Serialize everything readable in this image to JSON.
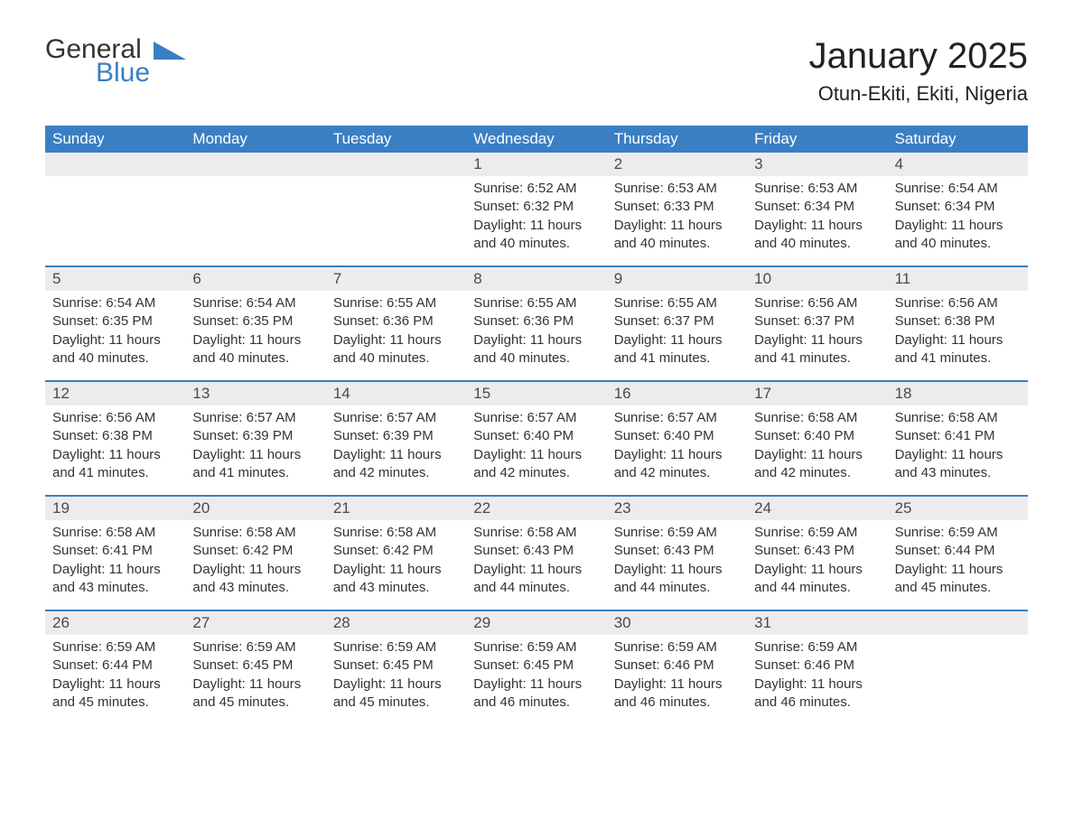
{
  "logo": {
    "text1": "General",
    "text2": "Blue",
    "text1_color": "#333333",
    "text2_color": "#3a7fc4",
    "shape_color": "#3a7fc4"
  },
  "title": "January 2025",
  "location": "Otun-Ekiti, Ekiti, Nigeria",
  "colors": {
    "header_bg": "#3a7fc4",
    "header_text": "#ffffff",
    "daynum_bg": "#ececec",
    "daynum_text": "#4a4a4a",
    "body_text": "#333333",
    "row_border": "#3a7fc4",
    "page_bg": "#ffffff"
  },
  "typography": {
    "title_fontsize": 40,
    "location_fontsize": 22,
    "dayheader_fontsize": 17,
    "daynum_fontsize": 17,
    "content_fontsize": 15,
    "font_family": "Arial"
  },
  "day_headers": [
    "Sunday",
    "Monday",
    "Tuesday",
    "Wednesday",
    "Thursday",
    "Friday",
    "Saturday"
  ],
  "weeks": [
    [
      {
        "empty": true
      },
      {
        "empty": true
      },
      {
        "empty": true
      },
      {
        "day": "1",
        "sunrise": "Sunrise: 6:52 AM",
        "sunset": "Sunset: 6:32 PM",
        "daylight": "Daylight: 11 hours and 40 minutes."
      },
      {
        "day": "2",
        "sunrise": "Sunrise: 6:53 AM",
        "sunset": "Sunset: 6:33 PM",
        "daylight": "Daylight: 11 hours and 40 minutes."
      },
      {
        "day": "3",
        "sunrise": "Sunrise: 6:53 AM",
        "sunset": "Sunset: 6:34 PM",
        "daylight": "Daylight: 11 hours and 40 minutes."
      },
      {
        "day": "4",
        "sunrise": "Sunrise: 6:54 AM",
        "sunset": "Sunset: 6:34 PM",
        "daylight": "Daylight: 11 hours and 40 minutes."
      }
    ],
    [
      {
        "day": "5",
        "sunrise": "Sunrise: 6:54 AM",
        "sunset": "Sunset: 6:35 PM",
        "daylight": "Daylight: 11 hours and 40 minutes."
      },
      {
        "day": "6",
        "sunrise": "Sunrise: 6:54 AM",
        "sunset": "Sunset: 6:35 PM",
        "daylight": "Daylight: 11 hours and 40 minutes."
      },
      {
        "day": "7",
        "sunrise": "Sunrise: 6:55 AM",
        "sunset": "Sunset: 6:36 PM",
        "daylight": "Daylight: 11 hours and 40 minutes."
      },
      {
        "day": "8",
        "sunrise": "Sunrise: 6:55 AM",
        "sunset": "Sunset: 6:36 PM",
        "daylight": "Daylight: 11 hours and 40 minutes."
      },
      {
        "day": "9",
        "sunrise": "Sunrise: 6:55 AM",
        "sunset": "Sunset: 6:37 PM",
        "daylight": "Daylight: 11 hours and 41 minutes."
      },
      {
        "day": "10",
        "sunrise": "Sunrise: 6:56 AM",
        "sunset": "Sunset: 6:37 PM",
        "daylight": "Daylight: 11 hours and 41 minutes."
      },
      {
        "day": "11",
        "sunrise": "Sunrise: 6:56 AM",
        "sunset": "Sunset: 6:38 PM",
        "daylight": "Daylight: 11 hours and 41 minutes."
      }
    ],
    [
      {
        "day": "12",
        "sunrise": "Sunrise: 6:56 AM",
        "sunset": "Sunset: 6:38 PM",
        "daylight": "Daylight: 11 hours and 41 minutes."
      },
      {
        "day": "13",
        "sunrise": "Sunrise: 6:57 AM",
        "sunset": "Sunset: 6:39 PM",
        "daylight": "Daylight: 11 hours and 41 minutes."
      },
      {
        "day": "14",
        "sunrise": "Sunrise: 6:57 AM",
        "sunset": "Sunset: 6:39 PM",
        "daylight": "Daylight: 11 hours and 42 minutes."
      },
      {
        "day": "15",
        "sunrise": "Sunrise: 6:57 AM",
        "sunset": "Sunset: 6:40 PM",
        "daylight": "Daylight: 11 hours and 42 minutes."
      },
      {
        "day": "16",
        "sunrise": "Sunrise: 6:57 AM",
        "sunset": "Sunset: 6:40 PM",
        "daylight": "Daylight: 11 hours and 42 minutes."
      },
      {
        "day": "17",
        "sunrise": "Sunrise: 6:58 AM",
        "sunset": "Sunset: 6:40 PM",
        "daylight": "Daylight: 11 hours and 42 minutes."
      },
      {
        "day": "18",
        "sunrise": "Sunrise: 6:58 AM",
        "sunset": "Sunset: 6:41 PM",
        "daylight": "Daylight: 11 hours and 43 minutes."
      }
    ],
    [
      {
        "day": "19",
        "sunrise": "Sunrise: 6:58 AM",
        "sunset": "Sunset: 6:41 PM",
        "daylight": "Daylight: 11 hours and 43 minutes."
      },
      {
        "day": "20",
        "sunrise": "Sunrise: 6:58 AM",
        "sunset": "Sunset: 6:42 PM",
        "daylight": "Daylight: 11 hours and 43 minutes."
      },
      {
        "day": "21",
        "sunrise": "Sunrise: 6:58 AM",
        "sunset": "Sunset: 6:42 PM",
        "daylight": "Daylight: 11 hours and 43 minutes."
      },
      {
        "day": "22",
        "sunrise": "Sunrise: 6:58 AM",
        "sunset": "Sunset: 6:43 PM",
        "daylight": "Daylight: 11 hours and 44 minutes."
      },
      {
        "day": "23",
        "sunrise": "Sunrise: 6:59 AM",
        "sunset": "Sunset: 6:43 PM",
        "daylight": "Daylight: 11 hours and 44 minutes."
      },
      {
        "day": "24",
        "sunrise": "Sunrise: 6:59 AM",
        "sunset": "Sunset: 6:43 PM",
        "daylight": "Daylight: 11 hours and 44 minutes."
      },
      {
        "day": "25",
        "sunrise": "Sunrise: 6:59 AM",
        "sunset": "Sunset: 6:44 PM",
        "daylight": "Daylight: 11 hours and 45 minutes."
      }
    ],
    [
      {
        "day": "26",
        "sunrise": "Sunrise: 6:59 AM",
        "sunset": "Sunset: 6:44 PM",
        "daylight": "Daylight: 11 hours and 45 minutes."
      },
      {
        "day": "27",
        "sunrise": "Sunrise: 6:59 AM",
        "sunset": "Sunset: 6:45 PM",
        "daylight": "Daylight: 11 hours and 45 minutes."
      },
      {
        "day": "28",
        "sunrise": "Sunrise: 6:59 AM",
        "sunset": "Sunset: 6:45 PM",
        "daylight": "Daylight: 11 hours and 45 minutes."
      },
      {
        "day": "29",
        "sunrise": "Sunrise: 6:59 AM",
        "sunset": "Sunset: 6:45 PM",
        "daylight": "Daylight: 11 hours and 46 minutes."
      },
      {
        "day": "30",
        "sunrise": "Sunrise: 6:59 AM",
        "sunset": "Sunset: 6:46 PM",
        "daylight": "Daylight: 11 hours and 46 minutes."
      },
      {
        "day": "31",
        "sunrise": "Sunrise: 6:59 AM",
        "sunset": "Sunset: 6:46 PM",
        "daylight": "Daylight: 11 hours and 46 minutes."
      },
      {
        "empty": true
      }
    ]
  ]
}
